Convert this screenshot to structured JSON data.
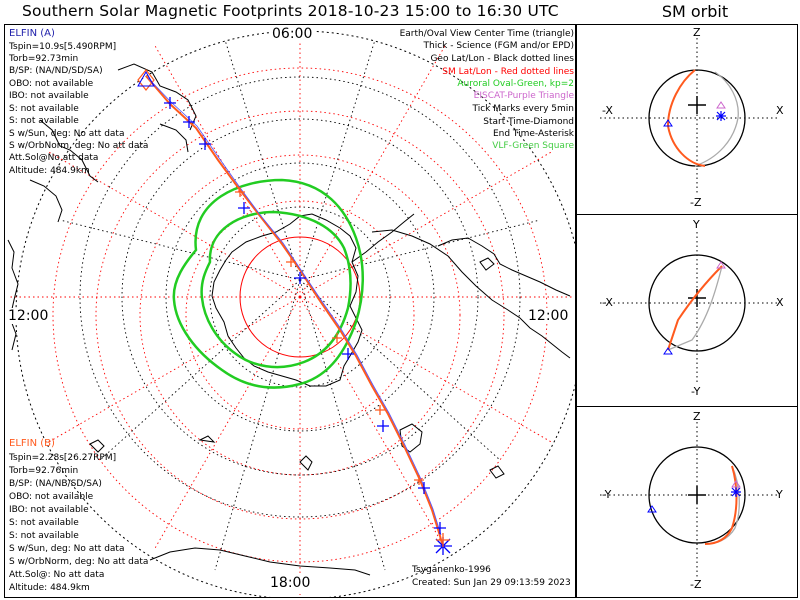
{
  "title": "Southern Solar Magnetic Footprints 2018-10-23 15:00 to 16:30 UTC",
  "orbit_title": "SM orbit",
  "map": {
    "hour_labels": {
      "top": "06:00",
      "bottom": "18:00",
      "left": "12:00",
      "right": "12:00"
    }
  },
  "elfin_a": {
    "name": "ELFIN (A)",
    "color": "#1e1eaa",
    "lines": [
      "Tspin=10.9s[5.490RPM]",
      "Torb=92.73min",
      "B/SP: (NA/ND/SD/SA)",
      "OBO: not available",
      "IBO: not available",
      "S: not available",
      "S: not available",
      "S w/Sun, deg: No att data",
      "S w/OrbNorm, deg: No att data",
      "Att.Sol@No att data",
      "Altitude: 484.9km"
    ]
  },
  "elfin_b": {
    "name": "ELFIN (B)",
    "color": "#ff5a1e",
    "lines": [
      "Tspin=2.28s[26.27RPM]",
      "Torb=92.76min",
      "B/SP: (NA/NB/SD/SA)",
      "OBO: not available",
      "IBO: not available",
      "S: not available",
      "S: not available",
      "S w/Sun, deg: No att data",
      "S w/OrbNorm, deg: No att data",
      "Att.Sol@: No att data",
      "Altitude: 484.9km"
    ]
  },
  "legend": [
    {
      "text": "Earth/Oval View Center Time (triangle)",
      "color": "#000000"
    },
    {
      "text": "Thick - Science (FGM and/or EPD)",
      "color": "#000000"
    },
    {
      "text": "Geo Lat/Lon - Black dotted lines",
      "color": "#000000"
    },
    {
      "text": "SM Lat/Lon - Red dotted lines",
      "color": "#ff0000"
    },
    {
      "text": "Auroral Oval-Green, kp=2",
      "color": "#22cc22"
    },
    {
      "text": "EISCAT-Purple Triangle",
      "color": "#cc66cc"
    },
    {
      "text": "Tick Marks every 5min",
      "color": "#000000"
    },
    {
      "text": "Start Time-Diamond",
      "color": "#000000"
    },
    {
      "text": "End Time-Asterisk",
      "color": "#000000"
    },
    {
      "text": "VLF-Green Square",
      "color": "#44cc44"
    }
  ],
  "credits": {
    "model": "Tsyganenko-1996",
    "created": "Created: Sun Jan 29 09:13:59 2023"
  },
  "panels": [
    {
      "top": "Z",
      "bottom": "-Z",
      "left": "-X",
      "right": "X"
    },
    {
      "top": "Y",
      "bottom": "-Y",
      "left": "-X",
      "right": "X"
    },
    {
      "top": "Z",
      "bottom": "-Z",
      "left": "-Y",
      "right": "Y"
    }
  ],
  "colors": {
    "elfin_a_track": "#0000ff",
    "elfin_b_track": "#ff5a1e",
    "sm_grid": "#ff0000",
    "geo_grid": "#000000",
    "oval": "#22cc22",
    "orbit_gray": "#aaaaaa"
  }
}
